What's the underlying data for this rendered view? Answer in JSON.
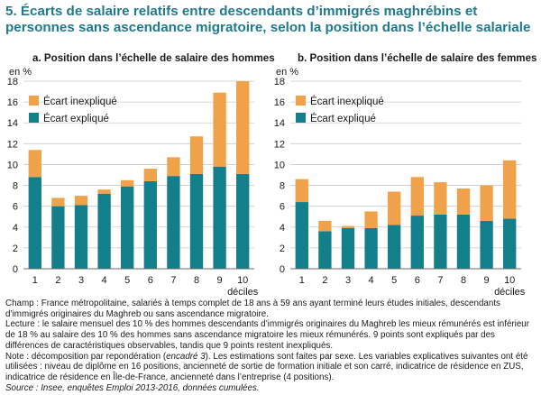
{
  "title": "5. Écarts de salaire relatifs entre descendants d’immigrés maghrébins et personnes sans ascendance migratoire, selon la position dans l’échelle salariale",
  "colors": {
    "explained": "#127f8a",
    "unexplained": "#f0a24a",
    "title": "#1f7a8c"
  },
  "chart_data": [
    {
      "type": "bar",
      "title": "a. Position dans l’échelle de salaire des hommes",
      "ylabel": "en %",
      "xlabel": "déciles",
      "ylim": [
        0,
        18
      ],
      "yticks": [
        0,
        2,
        4,
        6,
        8,
        10,
        12,
        14,
        16,
        18
      ],
      "grid": true,
      "stacked": true,
      "legend_position": "top-left",
      "categories": [
        "1",
        "2",
        "3",
        "4",
        "5",
        "6",
        "7",
        "8",
        "9",
        "10"
      ],
      "series": [
        {
          "name": "Écart expliqué",
          "values": [
            8.8,
            6.0,
            6.1,
            7.2,
            7.9,
            8.4,
            8.9,
            9.1,
            9.8,
            9.1
          ]
        },
        {
          "name": "Écart inexpliqué",
          "values": [
            2.6,
            0.8,
            0.9,
            0.4,
            0.6,
            1.2,
            1.8,
            3.6,
            7.1,
            8.9
          ]
        }
      ]
    },
    {
      "type": "bar",
      "title": "b. Position dans l’échelle de salaire des femmes",
      "ylabel": "en %",
      "xlabel": "déciles",
      "ylim": [
        0,
        18
      ],
      "yticks": [
        0,
        2,
        4,
        6,
        8,
        10,
        12,
        14,
        16,
        18
      ],
      "grid": true,
      "stacked": true,
      "legend_position": "top-left",
      "categories": [
        "1",
        "2",
        "3",
        "4",
        "5",
        "6",
        "7",
        "8",
        "9",
        "10"
      ],
      "series": [
        {
          "name": "Écart expliqué",
          "values": [
            6.4,
            3.6,
            3.9,
            3.9,
            4.2,
            5.1,
            5.2,
            5.2,
            4.6,
            4.8
          ]
        },
        {
          "name": "Écart inexpliqué",
          "values": [
            2.2,
            1.0,
            0.2,
            1.6,
            3.2,
            3.7,
            3.1,
            2.5,
            3.4,
            5.6
          ]
        }
      ]
    }
  ],
  "notes": {
    "champ": "Champ : France métropolitaine, salariés à temps complet de 18 ans à 59 ans ayant terminé leurs études initiales, descendants d’immigrés originaires du Maghreb ou sans ascendance migratoire.",
    "lecture": "Lecture : le salaire mensuel des 10 % des hommes descendants d’immigrés originaires du Maghreb les mieux rémunérés est inférieur de 18 % au salaire des 10 % des hommes sans ascendance migratoire les mieux rémunérés. 9 points sont expliqués par des différences de caractéristiques observables, tandis que 9 points restent inexpliqués.",
    "note_prefix": "Note : décomposition par repondération (",
    "note_ref": "encadré 3",
    "note_suffix": "). Les estimations sont faites par sexe. Les variables explicatives suivantes ont été utilisées : niveau de diplôme en 16 positions, ancienneté de sortie de formation initiale et son carré, indicatrice de résidence en ZUS, indicatrice de résidence en Île-de-France, ancienneté dans l’entreprise (4 positions).",
    "source": "Source : Insee, enquêtes Emploi 2013-2016, données cumulées."
  }
}
